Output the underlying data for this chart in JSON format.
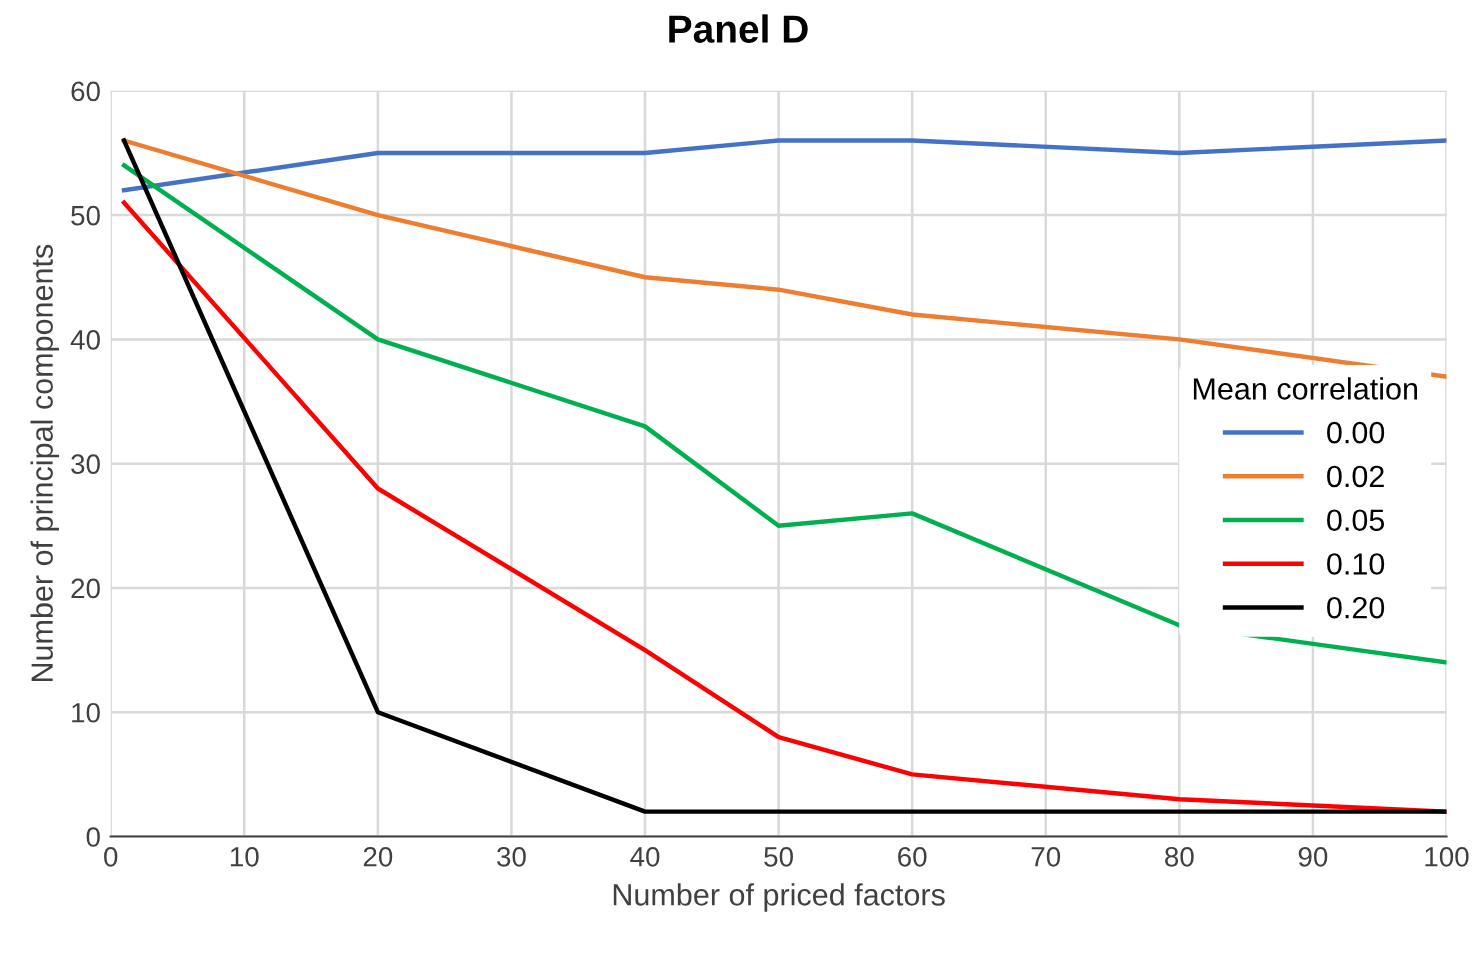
{
  "chart_data": {
    "type": "line",
    "title": "Panel D",
    "xlabel": "Number of priced factors",
    "ylabel": "Number of principal components",
    "legend_title": "Mean correlation",
    "x": [
      1,
      20,
      40,
      50,
      60,
      80,
      100
    ],
    "series": [
      {
        "name": "0.00",
        "color": "#4472c4",
        "values": [
          52,
          55,
          55,
          56,
          56,
          55,
          56
        ]
      },
      {
        "name": "0.02",
        "color": "#ed7d31",
        "values": [
          56,
          50,
          45,
          44,
          42,
          40,
          37
        ]
      },
      {
        "name": "0.05",
        "color": "#00b050",
        "values": [
          54,
          40,
          33,
          25,
          26,
          17,
          14
        ]
      },
      {
        "name": "0.10",
        "color": "#ff0000",
        "values": [
          51,
          28,
          15,
          8,
          5,
          3,
          2
        ]
      },
      {
        "name": "0.20",
        "color": "#000000",
        "values": [
          56,
          10,
          2,
          2,
          2,
          2,
          2
        ]
      }
    ],
    "xlim": [
      0,
      100
    ],
    "xticks": [
      0,
      10,
      20,
      30,
      40,
      50,
      60,
      70,
      80,
      90,
      100
    ],
    "ylim": [
      0,
      60
    ],
    "yticks": [
      0,
      10,
      20,
      30,
      40,
      50,
      60
    ],
    "grid": true,
    "legend": "right",
    "marker": "none",
    "line_style": "solid"
  }
}
